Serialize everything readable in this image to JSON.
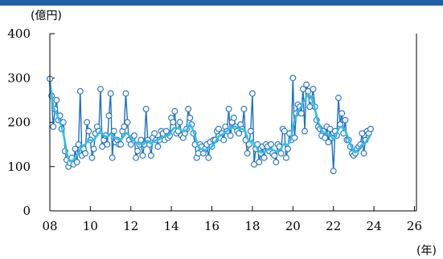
{
  "chart_data": {
    "type": "line",
    "title": "",
    "ylabel": "(億円)",
    "xlabel": "(年)",
    "ylim": [
      0,
      400
    ],
    "xlim": [
      2008,
      2026.1
    ],
    "y_ticks": [
      "0",
      "100",
      "200",
      "300",
      "400"
    ],
    "x_ticks": [
      {
        "value": 2008,
        "label": "08"
      },
      {
        "value": 2010,
        "label": "10"
      },
      {
        "value": 2012,
        "label": "12"
      },
      {
        "value": 2014,
        "label": "14"
      },
      {
        "value": 2016,
        "label": "16"
      },
      {
        "value": 2018,
        "label": "18"
      },
      {
        "value": 2020,
        "label": "20"
      },
      {
        "value": 2022,
        "label": "22"
      },
      {
        "value": 2024,
        "label": "24"
      },
      {
        "value": 2026,
        "label": "26"
      }
    ],
    "grid": false,
    "series": [
      {
        "style": "line-with-markers",
        "color": "#1f6fc4",
        "x_start": 2008.0,
        "x_step_months": 1,
        "values": [
          298,
          260,
          190,
          230,
          250,
          205,
          215,
          185,
          200,
          135,
          115,
          100,
          108,
          120,
          105,
          140,
          110,
          150,
          270,
          125,
          140,
          130,
          200,
          180,
          160,
          120,
          140,
          175,
          190,
          180,
          275,
          145,
          160,
          170,
          150,
          215,
          265,
          120,
          180,
          155,
          160,
          150,
          150,
          180,
          190,
          265,
          200,
          160,
          150,
          165,
          170,
          120,
          135,
          150,
          160,
          125,
          150,
          230,
          160,
          150,
          125,
          165,
          175,
          160,
          145,
          160,
          180,
          175,
          160,
          180,
          165,
          170,
          210,
          200,
          225,
          175,
          180,
          200,
          170,
          165,
          175,
          185,
          230,
          210,
          195,
          175,
          150,
          120,
          130,
          150,
          145,
          130,
          140,
          150,
          120,
          155,
          145,
          160,
          160,
          180,
          185,
          165,
          175,
          160,
          190,
          180,
          230,
          170,
          200,
          210,
          190,
          180,
          175,
          195,
          185,
          230,
          160,
          130,
          150,
          180,
          265,
          105,
          140,
          150,
          110,
          130,
          145,
          120,
          150,
          145,
          135,
          150,
          130,
          125,
          110,
          150,
          145,
          130,
          185,
          180,
          120,
          140,
          175,
          160,
          300,
          165,
          220,
          240,
          235,
          220,
          275,
          180,
          285,
          270,
          235,
          250,
          275,
          235,
          205,
          190,
          185,
          170,
          180,
          165,
          190,
          155,
          185,
          165,
          90,
          180,
          170,
          255,
          195,
          220,
          175,
          205,
          160,
          160,
          145,
          130,
          125,
          130,
          140,
          145,
          150,
          175,
          130,
          160,
          180,
          175,
          185
        ]
      },
      {
        "style": "line",
        "color": "#33bde8",
        "x_start": 2008.0,
        "x_step_months": 1,
        "values": [
          290,
          265,
          235,
          225,
          220,
          210,
          200,
          190,
          175,
          155,
          130,
          118,
          112,
          112,
          115,
          120,
          125,
          130,
          140,
          145,
          148,
          150,
          155,
          160,
          160,
          158,
          160,
          165,
          170,
          175,
          180,
          175,
          170,
          168,
          168,
          170,
          175,
          170,
          168,
          165,
          162,
          160,
          160,
          165,
          170,
          175,
          175,
          170,
          165,
          160,
          158,
          155,
          152,
          150,
          152,
          150,
          152,
          158,
          158,
          155,
          152,
          155,
          158,
          160,
          160,
          162,
          165,
          168,
          168,
          170,
          170,
          172,
          180,
          185,
          188,
          188,
          186,
          185,
          182,
          180,
          180,
          182,
          190,
          195,
          190,
          180,
          170,
          155,
          145,
          140,
          140,
          138,
          138,
          140,
          140,
          142,
          145,
          150,
          155,
          162,
          168,
          170,
          172,
          175,
          178,
          180,
          185,
          185,
          188,
          190,
          190,
          188,
          185,
          185,
          185,
          185,
          178,
          165,
          158,
          155,
          160,
          150,
          145,
          140,
          135,
          132,
          132,
          132,
          135,
          138,
          138,
          140,
          138,
          136,
          134,
          136,
          138,
          140,
          148,
          152,
          150,
          150,
          155,
          165,
          190,
          205,
          215,
          225,
          230,
          235,
          245,
          250,
          258,
          260,
          260,
          255,
          245,
          230,
          215,
          200,
          190,
          182,
          178,
          175,
          175,
          172,
          170,
          168,
          160,
          165,
          175,
          185,
          190,
          190,
          185,
          182,
          172,
          162,
          152,
          142,
          135,
          132,
          135,
          140,
          145,
          150,
          152,
          155,
          160,
          165,
          172
        ]
      }
    ]
  },
  "colors": {
    "top_bar": "#1f5ea8",
    "axis": "#000000",
    "marker_fill": "#ffffff"
  }
}
